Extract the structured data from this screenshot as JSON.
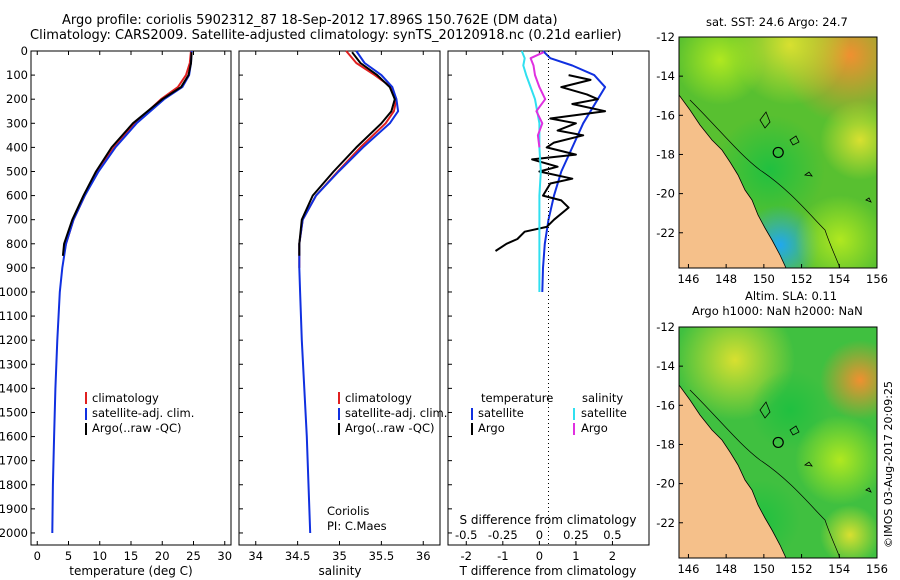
{
  "title_line1": "Argo profile: coriolis 5902312_87 18-Sep-2012 17.896S 150.762E (DM data)",
  "title_line2": "Climatology: CARS2009. Satellite-adjusted climatology: synTS_20120918.nc (0.21d earlier)",
  "map1_title": "sat. SST: 24.6 Argo: 24.7",
  "map2_title_line1": "Altim. SLA: 0.11",
  "map2_title_line2": "Argo h1000: NaN h2000: NaN",
  "side_stamp": "©IMOS 03-Aug-2017 20:09:25",
  "colors": {
    "climatology": "#e02020",
    "satellite": "#1030e0",
    "argo": "#000000",
    "sal_satellite": "#30e0f0",
    "sal_argo": "#e030e0",
    "land": "#f5c08a"
  },
  "chart_data": [
    {
      "type": "line",
      "name": "temperature-profile",
      "xlabel": "temperature (deg C)",
      "ylabel": "depth",
      "xlim": [
        -1,
        31
      ],
      "ylim": [
        2050,
        0
      ],
      "xticks": [
        0,
        5,
        10,
        15,
        20,
        25,
        30
      ],
      "yticks": [
        0,
        100,
        200,
        300,
        400,
        500,
        600,
        700,
        800,
        900,
        1000,
        1100,
        1200,
        1300,
        1400,
        1500,
        1600,
        1700,
        1800,
        1900,
        2000
      ],
      "legend": [
        "climatology",
        "satellite-adj. clim.",
        "Argo(..raw -QC)"
      ],
      "legend_position": "lower-left",
      "series": [
        {
          "name": "climatology",
          "color": "#e02020",
          "depth": [
            0,
            50,
            100,
            150,
            200,
            300,
            400,
            500,
            600,
            700,
            800,
            850
          ],
          "values": [
            24.6,
            24.4,
            23.8,
            22.5,
            19.8,
            15.6,
            12.3,
            9.6,
            7.6,
            5.8,
            4.6,
            4.2
          ]
        },
        {
          "name": "satellite-adj. clim.",
          "color": "#1030e0",
          "depth": [
            0,
            50,
            100,
            150,
            200,
            300,
            400,
            500,
            600,
            700,
            800,
            900,
            1000,
            1200,
            1400,
            1600,
            1800,
            2000
          ],
          "values": [
            24.7,
            24.6,
            24.3,
            23.2,
            20.3,
            15.9,
            12.5,
            9.8,
            7.6,
            5.8,
            4.6,
            4.0,
            3.6,
            3.2,
            2.9,
            2.7,
            2.5,
            2.4
          ]
        },
        {
          "name": "Argo(..raw -QC)",
          "color": "#000000",
          "depth": [
            5,
            50,
            100,
            150,
            200,
            300,
            400,
            500,
            600,
            700,
            800,
            850
          ],
          "values": [
            24.7,
            24.6,
            24.2,
            23.0,
            20.0,
            15.3,
            11.9,
            9.4,
            7.4,
            5.6,
            4.3,
            4.1
          ]
        }
      ]
    },
    {
      "type": "line",
      "name": "salinity-profile",
      "xlabel": "salinity",
      "ylabel": "depth",
      "xlim": [
        33.8,
        36.2
      ],
      "ylim": [
        2050,
        0
      ],
      "xticks": [
        34,
        34.5,
        35,
        35.5,
        36
      ],
      "legend": [
        "climatology",
        "satellite-adj. clim.",
        "Argo(..raw -QC)"
      ],
      "legend_position": "lower-right",
      "annotation": [
        "Coriolis",
        "PI: C.Maes"
      ],
      "series": [
        {
          "name": "climatology",
          "color": "#e02020",
          "depth": [
            0,
            50,
            100,
            150,
            200,
            250,
            300,
            400,
            500,
            600,
            700,
            800,
            900
          ],
          "values": [
            35.08,
            35.2,
            35.42,
            35.62,
            35.68,
            35.65,
            35.55,
            35.25,
            34.98,
            34.72,
            34.56,
            34.52,
            34.52
          ]
        },
        {
          "name": "satellite-adj. clim.",
          "color": "#1030e0",
          "depth": [
            0,
            50,
            100,
            150,
            200,
            250,
            300,
            400,
            500,
            600,
            700,
            800,
            900,
            1000,
            1200,
            1400,
            1600,
            1800,
            2000
          ],
          "values": [
            35.2,
            35.3,
            35.5,
            35.63,
            35.68,
            35.7,
            35.6,
            35.28,
            34.99,
            34.72,
            34.56,
            34.52,
            34.52,
            34.53,
            34.55,
            34.58,
            34.61,
            34.63,
            34.65
          ]
        },
        {
          "name": "Argo(..raw -QC)",
          "color": "#000000",
          "depth": [
            5,
            50,
            100,
            150,
            200,
            250,
            300,
            400,
            500,
            600,
            700,
            800,
            850
          ],
          "values": [
            35.15,
            35.25,
            35.45,
            35.6,
            35.66,
            35.62,
            35.5,
            35.2,
            34.93,
            34.68,
            34.55,
            34.52,
            34.52
          ]
        }
      ]
    },
    {
      "type": "line",
      "name": "difference-profile",
      "xlabel": "T difference from climatology",
      "xlabel_top": "S difference from climatology",
      "xlim": [
        -2.5,
        3.0
      ],
      "ylim": [
        2050,
        0
      ],
      "xticks": [
        -2,
        -1,
        0,
        1,
        2
      ],
      "xticks_salinity_labels": [
        "-0.5",
        "-0.25",
        "0",
        "0.25",
        "0.5"
      ],
      "legend_titles": [
        "temperature",
        "salinity"
      ],
      "legend": [
        "satellite",
        "Argo",
        "satellite",
        "Argo"
      ],
      "series": [
        {
          "name": "temperature satellite",
          "color": "#1030e0",
          "depth": [
            0,
            30,
            60,
            100,
            150,
            200,
            300,
            400,
            500,
            600,
            700,
            800,
            900,
            1000
          ],
          "values": [
            0.1,
            0.3,
            0.9,
            1.5,
            1.8,
            1.6,
            1.2,
            0.9,
            0.6,
            0.4,
            0.25,
            0.15,
            0.1,
            0.08
          ]
        },
        {
          "name": "temperature Argo",
          "color": "#000000",
          "depth": [
            100,
            120,
            150,
            180,
            200,
            220,
            250,
            280,
            300,
            330,
            350,
            380,
            400,
            430,
            450,
            480,
            500,
            530,
            550,
            600,
            620,
            650,
            700,
            730,
            750,
            780,
            800,
            830
          ],
          "values": [
            0.8,
            1.4,
            0.6,
            1.3,
            1.6,
            0.9,
            1.8,
            0.3,
            1.0,
            0.5,
            1.2,
            0.4,
            0.2,
            1.0,
            -0.2,
            0.5,
            0.0,
            0.9,
            0.3,
            0.1,
            0.6,
            0.8,
            0.4,
            0.2,
            -0.4,
            -0.6,
            -0.9,
            -1.2
          ]
        },
        {
          "name": "salinity satellite",
          "color": "#30e0f0",
          "depth": [
            0,
            30,
            60,
            100,
            150,
            200,
            300,
            400,
            500,
            600,
            700,
            800,
            900,
            1000
          ],
          "values": [
            -0.12,
            -0.1,
            -0.11,
            -0.09,
            -0.06,
            -0.03,
            0.0,
            0.0,
            0.01,
            0.0,
            0.0,
            0.0,
            0.0,
            0.0
          ]
        },
        {
          "name": "salinity Argo",
          "color": "#e030e0",
          "depth": [
            5,
            30,
            60,
            100,
            150,
            200,
            250,
            300,
            350,
            400
          ],
          "values": [
            0.03,
            -0.06,
            -0.04,
            -0.03,
            0.0,
            0.04,
            -0.02,
            0.02,
            -0.01,
            0.0
          ]
        }
      ]
    },
    {
      "type": "heatmap",
      "name": "sst-map",
      "title": "sat. SST: 24.6 Argo: 24.7",
      "xlim": [
        145.5,
        156
      ],
      "ylim": [
        -23.8,
        -12
      ],
      "xticks": [
        146,
        148,
        150,
        152,
        154,
        156
      ],
      "yticks": [
        -12,
        -14,
        -16,
        -18,
        -20,
        -22
      ],
      "marker": {
        "lon": 150.762,
        "lat": -17.896
      }
    },
    {
      "type": "heatmap",
      "name": "sla-map",
      "title": "Altim. SLA: 0.11",
      "xlim": [
        145.5,
        156
      ],
      "ylim": [
        -23.8,
        -12
      ],
      "xticks": [
        146,
        148,
        150,
        152,
        154,
        156
      ],
      "yticks": [
        -12,
        -14,
        -16,
        -18,
        -20,
        -22
      ],
      "marker": {
        "lon": 150.762,
        "lat": -17.896
      }
    }
  ]
}
